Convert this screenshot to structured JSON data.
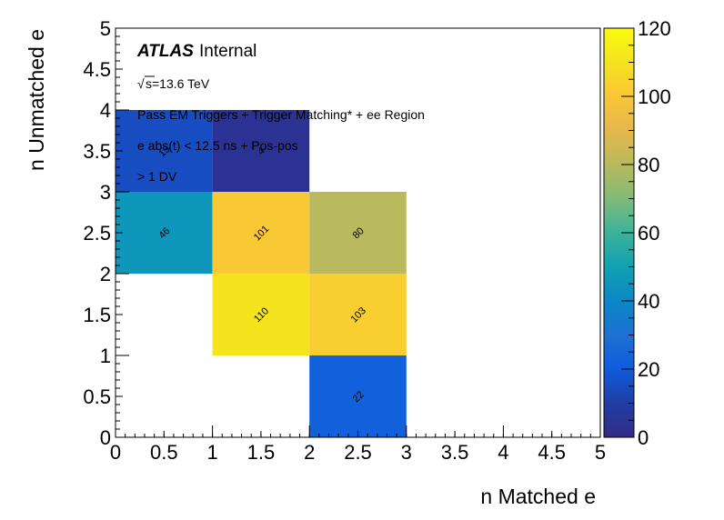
{
  "chart_data": {
    "type": "heatmap",
    "xlabel": "n Matched e",
    "ylabel": "n Unmatched e",
    "xlim": [
      0,
      5
    ],
    "ylim": [
      0,
      5
    ],
    "zlim": [
      0,
      120
    ],
    "x_ticks": [
      "0",
      "0.5",
      "1",
      "1.5",
      "2",
      "2.5",
      "3",
      "3.5",
      "4",
      "4.5",
      "5"
    ],
    "y_ticks": [
      "0",
      "0.5",
      "1",
      "1.5",
      "2",
      "2.5",
      "3",
      "3.5",
      "4",
      "4.5",
      "5"
    ],
    "z_ticks": [
      "0",
      "20",
      "40",
      "60",
      "80",
      "100",
      "120"
    ],
    "cells": [
      {
        "x0": 0,
        "x1": 1,
        "y0": 3,
        "y1": 4,
        "value": 15,
        "label": "15"
      },
      {
        "x0": 1,
        "x1": 2,
        "y0": 3,
        "y1": 4,
        "value": 4,
        "label": "4"
      },
      {
        "x0": 0,
        "x1": 1,
        "y0": 2,
        "y1": 3,
        "value": 46,
        "label": "46"
      },
      {
        "x0": 1,
        "x1": 2,
        "y0": 2,
        "y1": 3,
        "value": 101,
        "label": "101"
      },
      {
        "x0": 2,
        "x1": 3,
        "y0": 2,
        "y1": 3,
        "value": 80,
        "label": "80"
      },
      {
        "x0": 1,
        "x1": 2,
        "y0": 1,
        "y1": 2,
        "value": 110,
        "label": "110"
      },
      {
        "x0": 2,
        "x1": 3,
        "y0": 1,
        "y1": 2,
        "value": 103,
        "label": "103"
      },
      {
        "x0": 2,
        "x1": 3,
        "y0": 0,
        "y1": 1,
        "value": 22,
        "label": "22"
      }
    ]
  },
  "annotations": {
    "atlas": "ATLAS",
    "internal": "Internal",
    "sqrt_symbol": "√",
    "energy": "s=13.6 TeV",
    "line1": "Pass EM Triggers + Trigger Matching* + ee Region",
    "line2": "e abs(t) < 12.5 ns + Pos-pos",
    "line3": "> 1 DV"
  },
  "colors": {
    "palette": [
      "#352a87",
      "#1f3ea4",
      "#0f5cdd",
      "#1e71d2",
      "#0b87c6",
      "#10a1b3",
      "#3ab39a",
      "#80bb78",
      "#b8ba5d",
      "#e4b84b",
      "#f9c538",
      "#f5e31e",
      "#f9fb0e"
    ]
  }
}
